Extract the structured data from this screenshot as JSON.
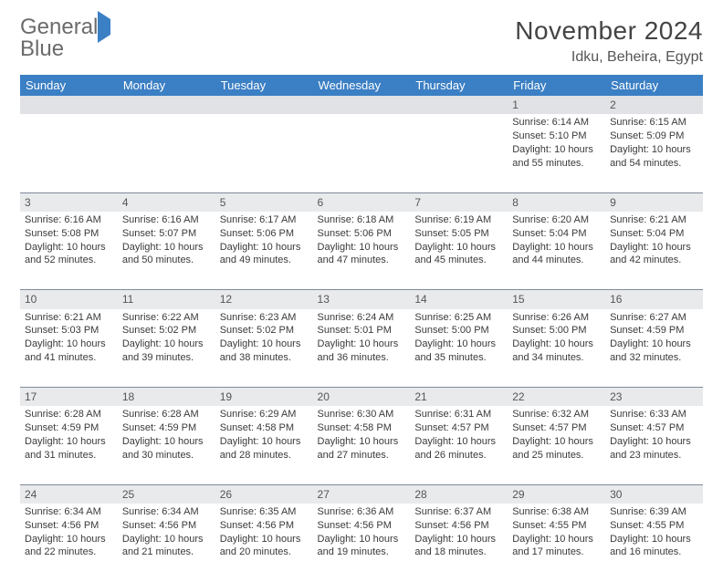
{
  "brand": {
    "word1": "General",
    "word2": "Blue"
  },
  "title": "November 2024",
  "location": "Idku, Beheira, Egypt",
  "day_headers": [
    "Sunday",
    "Monday",
    "Tuesday",
    "Wednesday",
    "Thursday",
    "Friday",
    "Saturday"
  ],
  "colors": {
    "header_bg": "#3b7fc4",
    "header_fg": "#ffffff",
    "daynum_bg": "#e9eaec",
    "row_divider": "#7f8a9a",
    "text": "#3a3a3a",
    "logo_gray": "#6b6b6b",
    "logo_blue": "#3b7fc4"
  },
  "weeks": [
    [
      null,
      null,
      null,
      null,
      null,
      {
        "n": "1",
        "sunrise": "Sunrise: 6:14 AM",
        "sunset": "Sunset: 5:10 PM",
        "day1": "Daylight: 10 hours",
        "day2": "and 55 minutes."
      },
      {
        "n": "2",
        "sunrise": "Sunrise: 6:15 AM",
        "sunset": "Sunset: 5:09 PM",
        "day1": "Daylight: 10 hours",
        "day2": "and 54 minutes."
      }
    ],
    [
      {
        "n": "3",
        "sunrise": "Sunrise: 6:16 AM",
        "sunset": "Sunset: 5:08 PM",
        "day1": "Daylight: 10 hours",
        "day2": "and 52 minutes."
      },
      {
        "n": "4",
        "sunrise": "Sunrise: 6:16 AM",
        "sunset": "Sunset: 5:07 PM",
        "day1": "Daylight: 10 hours",
        "day2": "and 50 minutes."
      },
      {
        "n": "5",
        "sunrise": "Sunrise: 6:17 AM",
        "sunset": "Sunset: 5:06 PM",
        "day1": "Daylight: 10 hours",
        "day2": "and 49 minutes."
      },
      {
        "n": "6",
        "sunrise": "Sunrise: 6:18 AM",
        "sunset": "Sunset: 5:06 PM",
        "day1": "Daylight: 10 hours",
        "day2": "and 47 minutes."
      },
      {
        "n": "7",
        "sunrise": "Sunrise: 6:19 AM",
        "sunset": "Sunset: 5:05 PM",
        "day1": "Daylight: 10 hours",
        "day2": "and 45 minutes."
      },
      {
        "n": "8",
        "sunrise": "Sunrise: 6:20 AM",
        "sunset": "Sunset: 5:04 PM",
        "day1": "Daylight: 10 hours",
        "day2": "and 44 minutes."
      },
      {
        "n": "9",
        "sunrise": "Sunrise: 6:21 AM",
        "sunset": "Sunset: 5:04 PM",
        "day1": "Daylight: 10 hours",
        "day2": "and 42 minutes."
      }
    ],
    [
      {
        "n": "10",
        "sunrise": "Sunrise: 6:21 AM",
        "sunset": "Sunset: 5:03 PM",
        "day1": "Daylight: 10 hours",
        "day2": "and 41 minutes."
      },
      {
        "n": "11",
        "sunrise": "Sunrise: 6:22 AM",
        "sunset": "Sunset: 5:02 PM",
        "day1": "Daylight: 10 hours",
        "day2": "and 39 minutes."
      },
      {
        "n": "12",
        "sunrise": "Sunrise: 6:23 AM",
        "sunset": "Sunset: 5:02 PM",
        "day1": "Daylight: 10 hours",
        "day2": "and 38 minutes."
      },
      {
        "n": "13",
        "sunrise": "Sunrise: 6:24 AM",
        "sunset": "Sunset: 5:01 PM",
        "day1": "Daylight: 10 hours",
        "day2": "and 36 minutes."
      },
      {
        "n": "14",
        "sunrise": "Sunrise: 6:25 AM",
        "sunset": "Sunset: 5:00 PM",
        "day1": "Daylight: 10 hours",
        "day2": "and 35 minutes."
      },
      {
        "n": "15",
        "sunrise": "Sunrise: 6:26 AM",
        "sunset": "Sunset: 5:00 PM",
        "day1": "Daylight: 10 hours",
        "day2": "and 34 minutes."
      },
      {
        "n": "16",
        "sunrise": "Sunrise: 6:27 AM",
        "sunset": "Sunset: 4:59 PM",
        "day1": "Daylight: 10 hours",
        "day2": "and 32 minutes."
      }
    ],
    [
      {
        "n": "17",
        "sunrise": "Sunrise: 6:28 AM",
        "sunset": "Sunset: 4:59 PM",
        "day1": "Daylight: 10 hours",
        "day2": "and 31 minutes."
      },
      {
        "n": "18",
        "sunrise": "Sunrise: 6:28 AM",
        "sunset": "Sunset: 4:59 PM",
        "day1": "Daylight: 10 hours",
        "day2": "and 30 minutes."
      },
      {
        "n": "19",
        "sunrise": "Sunrise: 6:29 AM",
        "sunset": "Sunset: 4:58 PM",
        "day1": "Daylight: 10 hours",
        "day2": "and 28 minutes."
      },
      {
        "n": "20",
        "sunrise": "Sunrise: 6:30 AM",
        "sunset": "Sunset: 4:58 PM",
        "day1": "Daylight: 10 hours",
        "day2": "and 27 minutes."
      },
      {
        "n": "21",
        "sunrise": "Sunrise: 6:31 AM",
        "sunset": "Sunset: 4:57 PM",
        "day1": "Daylight: 10 hours",
        "day2": "and 26 minutes."
      },
      {
        "n": "22",
        "sunrise": "Sunrise: 6:32 AM",
        "sunset": "Sunset: 4:57 PM",
        "day1": "Daylight: 10 hours",
        "day2": "and 25 minutes."
      },
      {
        "n": "23",
        "sunrise": "Sunrise: 6:33 AM",
        "sunset": "Sunset: 4:57 PM",
        "day1": "Daylight: 10 hours",
        "day2": "and 23 minutes."
      }
    ],
    [
      {
        "n": "24",
        "sunrise": "Sunrise: 6:34 AM",
        "sunset": "Sunset: 4:56 PM",
        "day1": "Daylight: 10 hours",
        "day2": "and 22 minutes."
      },
      {
        "n": "25",
        "sunrise": "Sunrise: 6:34 AM",
        "sunset": "Sunset: 4:56 PM",
        "day1": "Daylight: 10 hours",
        "day2": "and 21 minutes."
      },
      {
        "n": "26",
        "sunrise": "Sunrise: 6:35 AM",
        "sunset": "Sunset: 4:56 PM",
        "day1": "Daylight: 10 hours",
        "day2": "and 20 minutes."
      },
      {
        "n": "27",
        "sunrise": "Sunrise: 6:36 AM",
        "sunset": "Sunset: 4:56 PM",
        "day1": "Daylight: 10 hours",
        "day2": "and 19 minutes."
      },
      {
        "n": "28",
        "sunrise": "Sunrise: 6:37 AM",
        "sunset": "Sunset: 4:56 PM",
        "day1": "Daylight: 10 hours",
        "day2": "and 18 minutes."
      },
      {
        "n": "29",
        "sunrise": "Sunrise: 6:38 AM",
        "sunset": "Sunset: 4:55 PM",
        "day1": "Daylight: 10 hours",
        "day2": "and 17 minutes."
      },
      {
        "n": "30",
        "sunrise": "Sunrise: 6:39 AM",
        "sunset": "Sunset: 4:55 PM",
        "day1": "Daylight: 10 hours",
        "day2": "and 16 minutes."
      }
    ]
  ]
}
